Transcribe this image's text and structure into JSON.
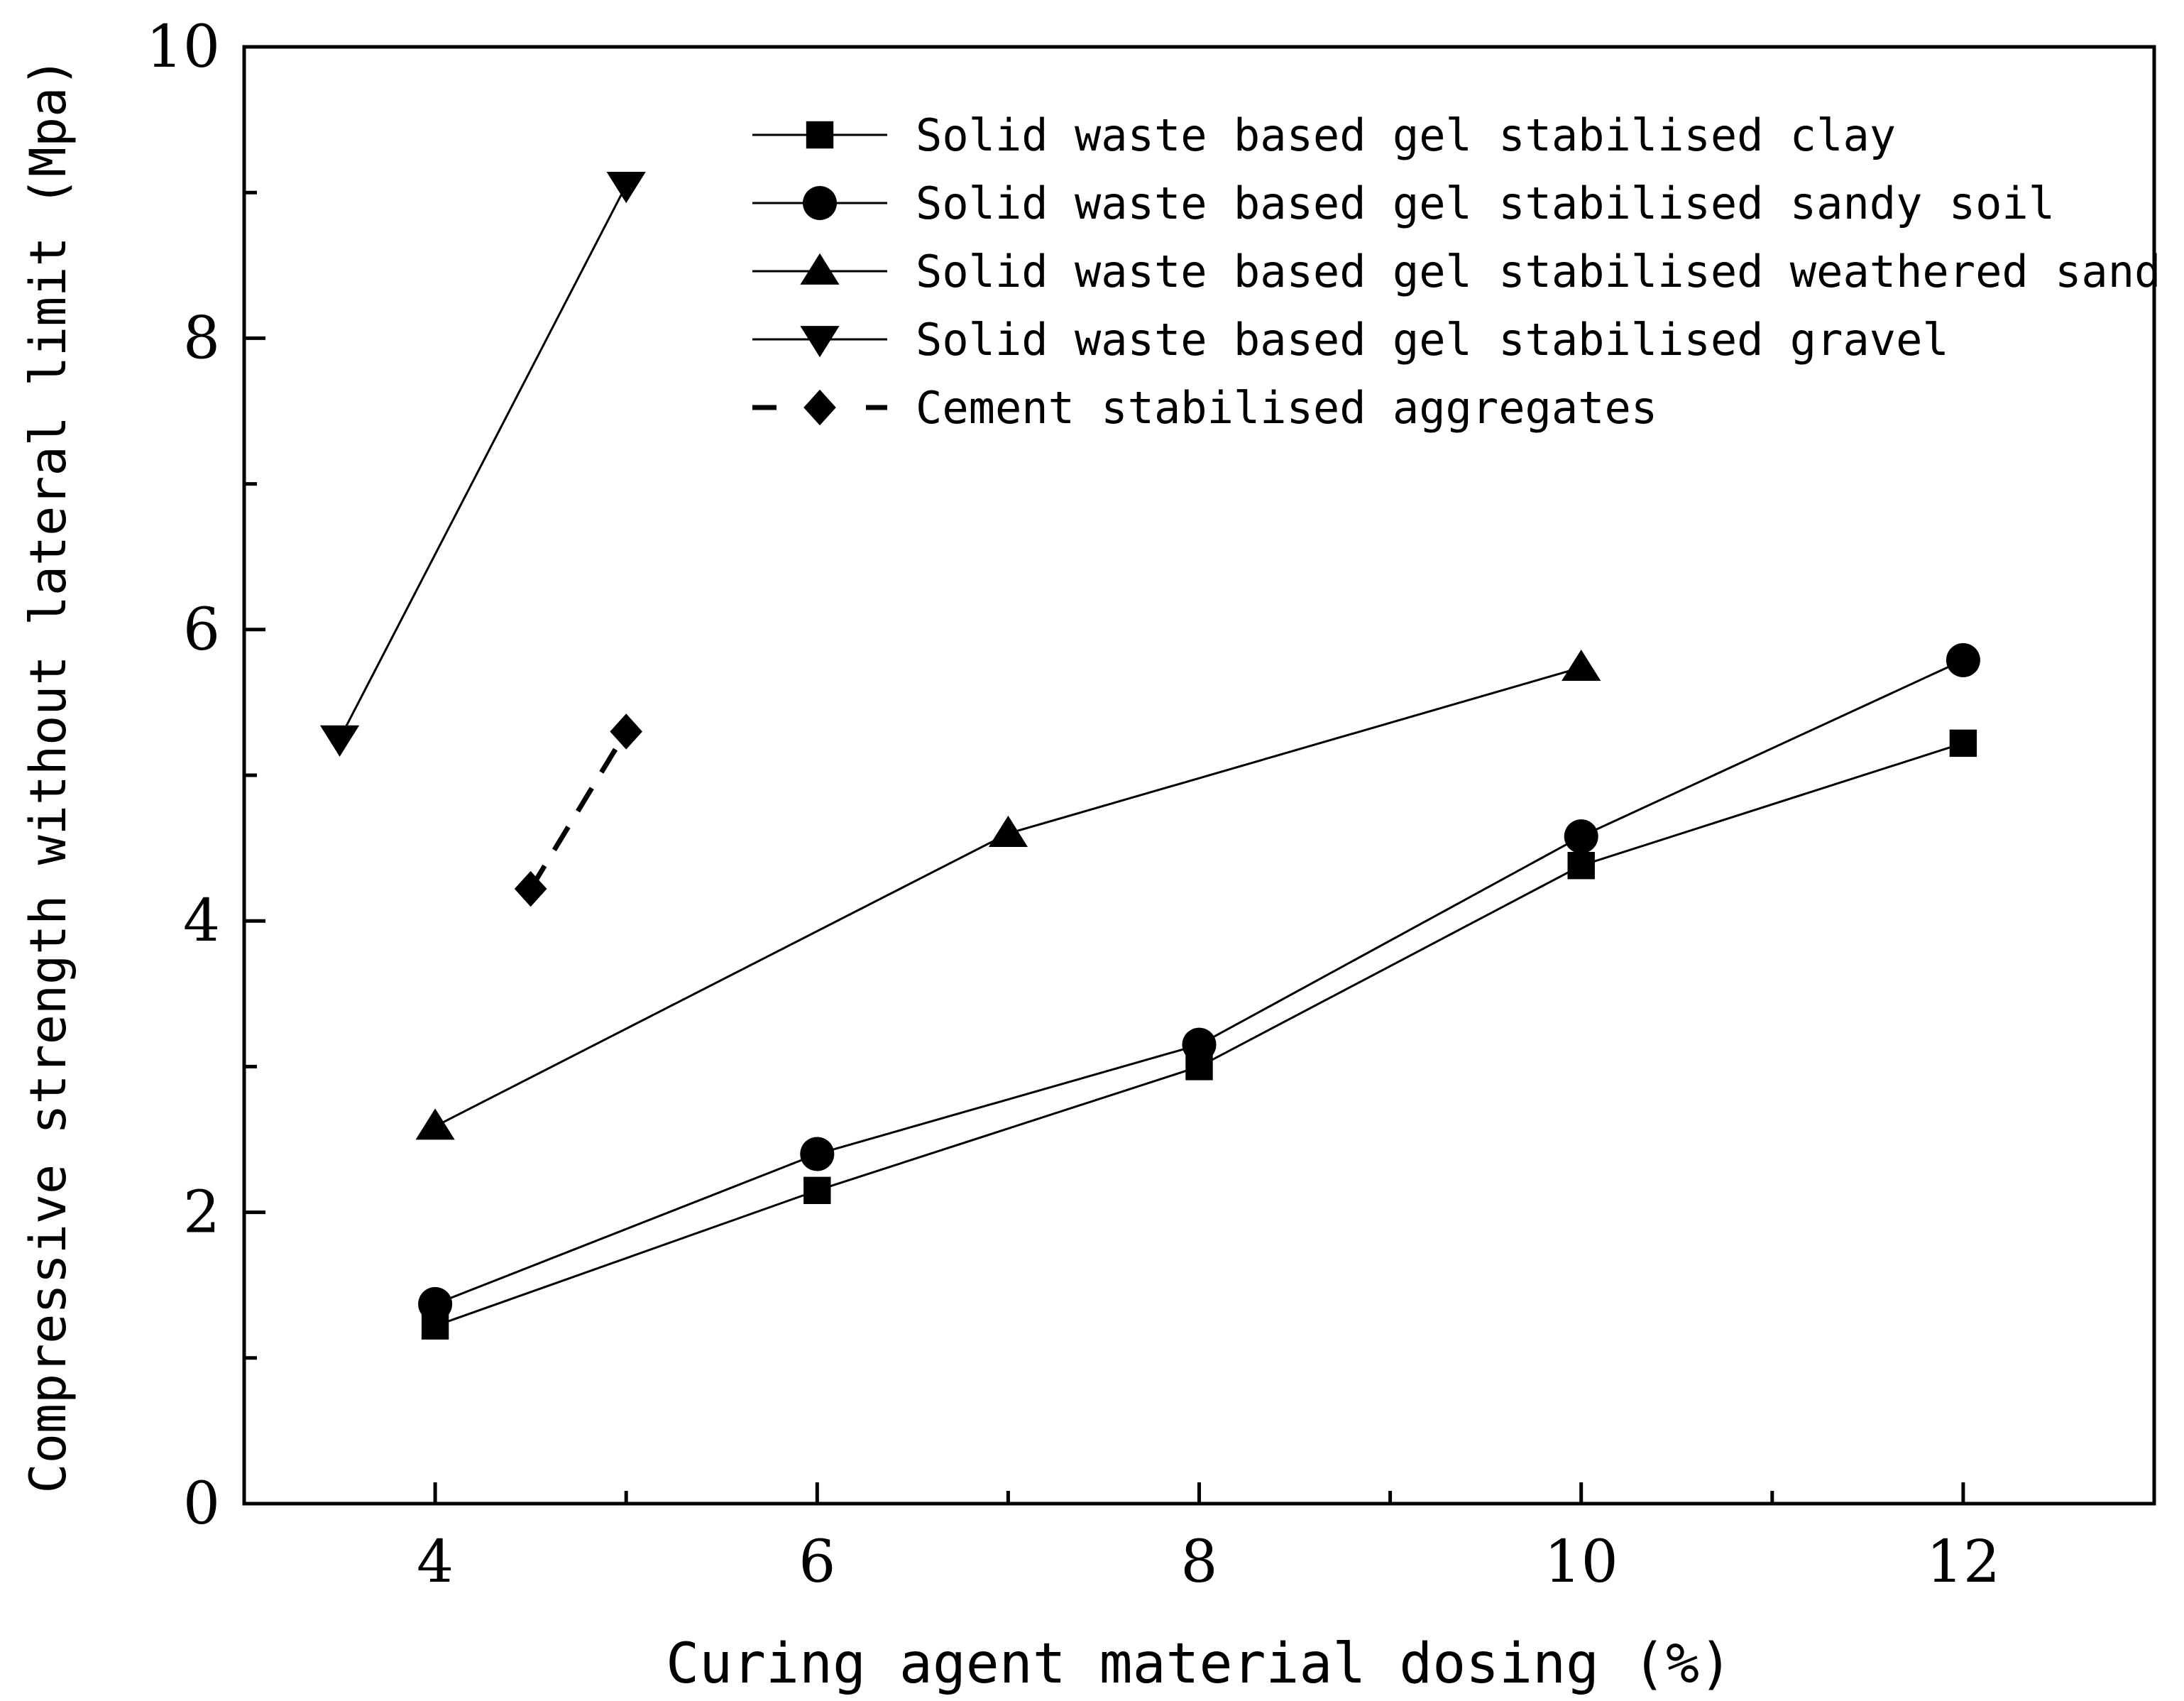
{
  "chart_data": {
    "type": "line",
    "title": "",
    "xlabel": "Curing agent material dosing (%)",
    "ylabel": "Compressive strength without lateral limit (Mpa)",
    "xlim": [
      3,
      13
    ],
    "ylim": [
      0,
      10
    ],
    "x_ticks": [
      "4",
      "6",
      "8",
      "10",
      "12"
    ],
    "y_ticks": [
      "0",
      "2",
      "4",
      "6",
      "8",
      "10"
    ],
    "grid": false,
    "legend_position": "top-right",
    "series": [
      {
        "name": "Solid waste based gel stabilised clay",
        "marker": "square",
        "dashed": false,
        "x": [
          4,
          6,
          8,
          10,
          12
        ],
        "y": [
          1.22,
          2.15,
          3.0,
          4.38,
          5.22
        ]
      },
      {
        "name": "Solid waste based gel stabilised sandy soil",
        "marker": "circle",
        "dashed": false,
        "x": [
          4,
          6,
          8,
          10,
          12
        ],
        "y": [
          1.37,
          2.4,
          3.15,
          4.58,
          5.79
        ]
      },
      {
        "name": "Solid waste based gel stabilised weathered sand",
        "marker": "triangle-up",
        "dashed": false,
        "x": [
          4,
          7,
          10
        ],
        "y": [
          2.59,
          4.6,
          5.74
        ]
      },
      {
        "name": "Solid waste based gel stabilised gravel",
        "marker": "triangle-down",
        "dashed": false,
        "x": [
          3.5,
          5
        ],
        "y": [
          5.25,
          9.05
        ]
      },
      {
        "name": "Cement stabilised aggregates",
        "marker": "diamond",
        "dashed": true,
        "x": [
          4.5,
          5
        ],
        "y": [
          4.22,
          5.3
        ]
      }
    ]
  }
}
